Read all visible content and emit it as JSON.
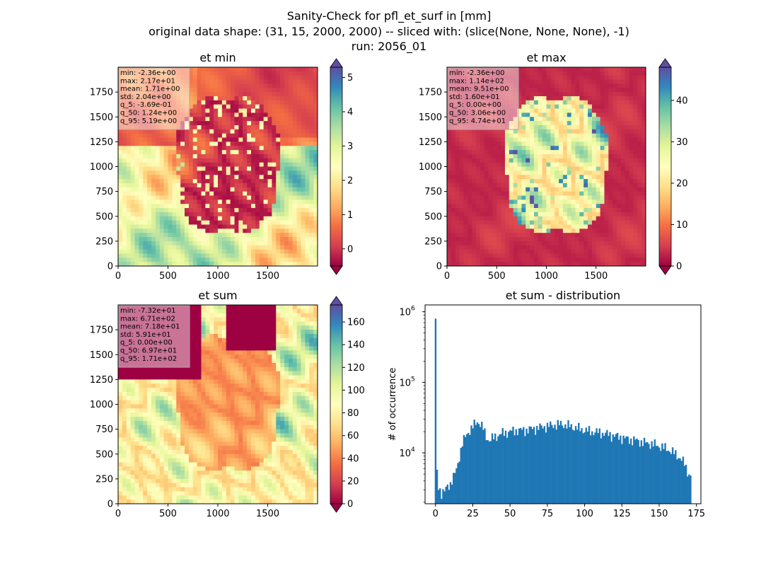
{
  "figure": {
    "title_line1": "Sanity-Check for pfl_et_surf in [mm]",
    "title_line2": "original data shape: (31, 15, 2000, 2000) -- sliced with: (slice(None, None, None), -1)",
    "title_line3": "run: 2056_01"
  },
  "colormap": {
    "name": "Spectral",
    "stops": [
      "#9e0142",
      "#d53e4f",
      "#f46d43",
      "#fdae61",
      "#fee08b",
      "#ffffbf",
      "#e6f598",
      "#abdda4",
      "#66c2a5",
      "#3288bd",
      "#5e4fa2"
    ]
  },
  "chart_data": [
    {
      "type": "heatmap",
      "title": "et min",
      "xlabel": "",
      "ylabel": "",
      "xlim": [
        0,
        2000
      ],
      "ylim": [
        0,
        2000
      ],
      "xticks": [
        "0",
        "500",
        "1000",
        "1500"
      ],
      "yticks": [
        "0",
        "250",
        "500",
        "750",
        "1000",
        "1250",
        "1500",
        "1750"
      ],
      "colorbar": {
        "range": [
          -0.5,
          5.3
        ],
        "ticks": [
          "0",
          "1",
          "2",
          "3",
          "4",
          "5"
        ],
        "extend": "both"
      },
      "stats": [
        "min: -2.36e+00",
        "max: 2.17e+01",
        "mean: 1.71e+00",
        "std: 2.04e+00",
        "q_5: -3.69e-01",
        "q_50: 1.24e+00",
        "q_95: 5.19e+00"
      ]
    },
    {
      "type": "heatmap",
      "title": "et max",
      "xlabel": "",
      "ylabel": "",
      "xlim": [
        0,
        2000
      ],
      "ylim": [
        0,
        2000
      ],
      "xticks": [
        "0",
        "500",
        "1000",
        "1500"
      ],
      "yticks": [
        "0",
        "250",
        "500",
        "750",
        "1000",
        "1250",
        "1500",
        "1750"
      ],
      "colorbar": {
        "range": [
          0,
          48
        ],
        "ticks": [
          "0",
          "10",
          "20",
          "30",
          "40"
        ],
        "extend": "both"
      },
      "stats": [
        "min: -2.36e+00",
        "max: 1.14e+02",
        "mean: 9.51e+00",
        "std: 1.60e+01",
        "q_5: 0.00e+00",
        "q_50: 3.06e+00",
        "q_95: 4.74e+01"
      ]
    },
    {
      "type": "heatmap",
      "title": "et sum",
      "xlabel": "",
      "ylabel": "",
      "xlim": [
        0,
        2000
      ],
      "ylim": [
        0,
        2000
      ],
      "xticks": [
        "0",
        "500",
        "1000",
        "1500"
      ],
      "yticks": [
        "0",
        "250",
        "500",
        "750",
        "1000",
        "1250",
        "1500",
        "1750"
      ],
      "colorbar": {
        "range": [
          0,
          175
        ],
        "ticks": [
          "0",
          "20",
          "40",
          "60",
          "80",
          "100",
          "120",
          "140",
          "160"
        ],
        "extend": "both"
      },
      "stats": [
        "min: -7.32e+01",
        "max: 6.71e+02",
        "mean: 7.18e+01",
        "std: 5.91e+01",
        "q_5: 0.00e+00",
        "q_50: 6.97e+01",
        "q_95: 1.71e+02"
      ]
    },
    {
      "type": "bar",
      "title": "et sum - distribution",
      "xlabel": "",
      "ylabel": "# of occurrence",
      "log_y": true,
      "xlim": [
        -7,
        178
      ],
      "ylim": [
        1900,
        1250000
      ],
      "xticks": [
        0,
        25,
        50,
        75,
        100,
        125,
        150,
        175
      ],
      "yticks": [
        {
          "value": 10000,
          "base": "10",
          "exp": "4"
        },
        {
          "value": 100000,
          "base": "10",
          "exp": "5"
        },
        {
          "value": 1000000,
          "base": "10",
          "exp": "6"
        }
      ],
      "bar_color": "#1f77b4",
      "bins": {
        "x_start": -0.5,
        "x_end": 171.5
      },
      "keypoints": [
        [
          -0.5,
          2300
        ],
        [
          0.2,
          800000
        ],
        [
          0.9,
          5500
        ],
        [
          2,
          3400
        ],
        [
          4,
          2700
        ],
        [
          6,
          2800
        ],
        [
          8,
          3400
        ],
        [
          10,
          3700
        ],
        [
          12,
          4500
        ],
        [
          14,
          5800
        ],
        [
          16,
          9000
        ],
        [
          18,
          13500
        ],
        [
          20,
          17000
        ],
        [
          22,
          20000
        ],
        [
          24,
          22000
        ],
        [
          26,
          25000
        ],
        [
          28,
          28000
        ],
        [
          30,
          26000
        ],
        [
          32,
          22000
        ],
        [
          34,
          17000
        ],
        [
          36,
          15000
        ],
        [
          38,
          16000
        ],
        [
          40,
          17000
        ],
        [
          45,
          19000
        ],
        [
          50,
          20000
        ],
        [
          55,
          21000
        ],
        [
          60,
          21000
        ],
        [
          65,
          22000
        ],
        [
          70,
          23000
        ],
        [
          75,
          24000
        ],
        [
          80,
          25000
        ],
        [
          85,
          25500
        ],
        [
          90,
          24000
        ],
        [
          95,
          22500
        ],
        [
          100,
          21000
        ],
        [
          105,
          20000
        ],
        [
          110,
          19500
        ],
        [
          115,
          18500
        ],
        [
          120,
          17500
        ],
        [
          125,
          16500
        ],
        [
          130,
          15500
        ],
        [
          135,
          15000
        ],
        [
          140,
          14000
        ],
        [
          145,
          13500
        ],
        [
          150,
          12500
        ],
        [
          155,
          11500
        ],
        [
          160,
          10000
        ],
        [
          164,
          8500
        ],
        [
          167,
          7000
        ],
        [
          169,
          5500
        ],
        [
          171.5,
          4500
        ]
      ]
    }
  ]
}
